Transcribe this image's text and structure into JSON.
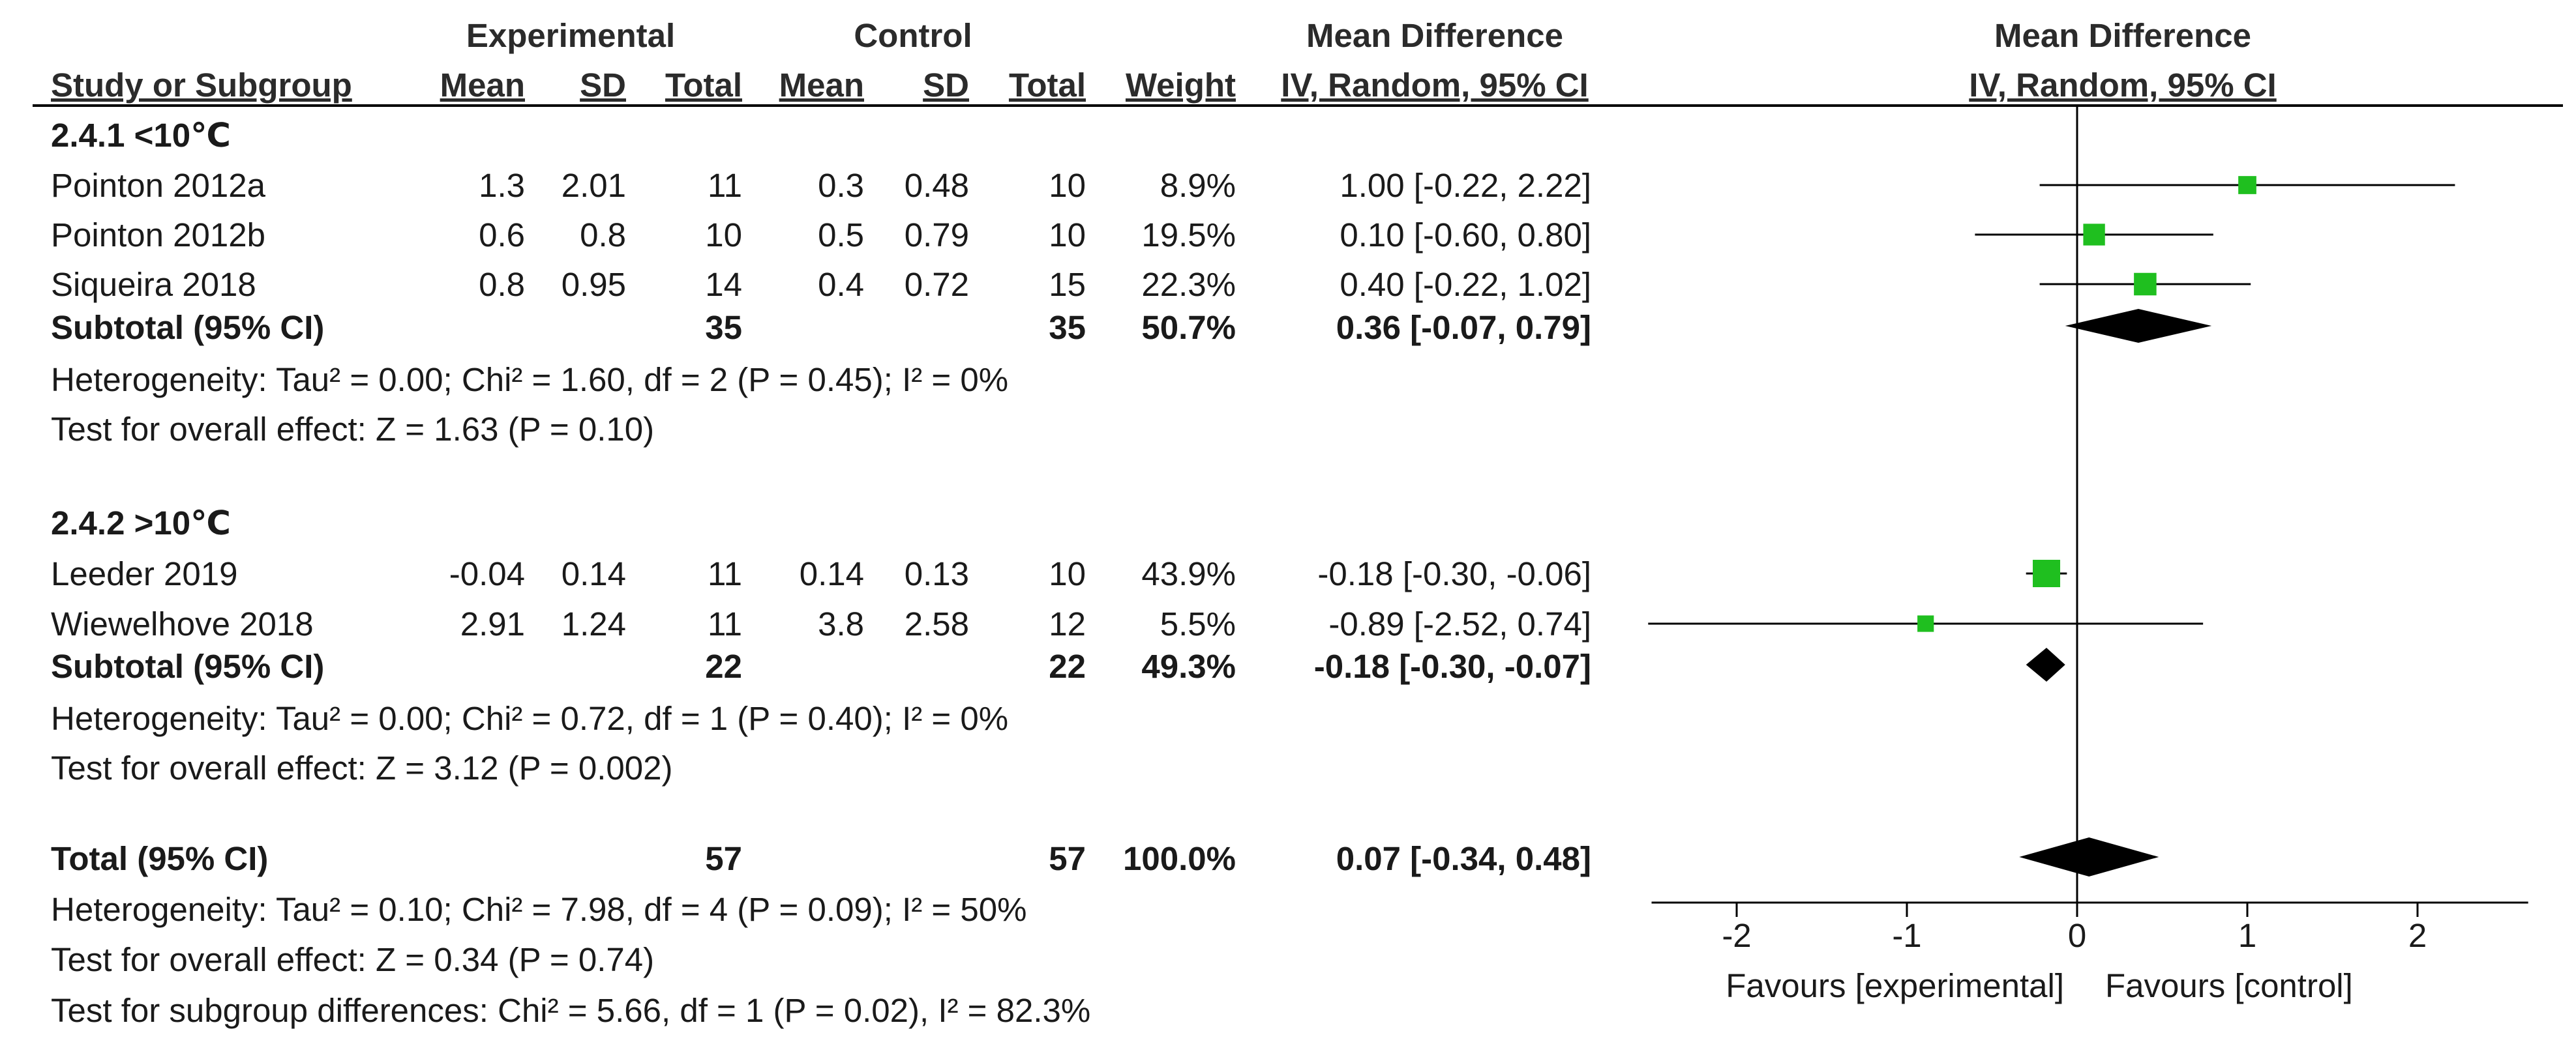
{
  "header": {
    "experimental": "Experimental",
    "control": "Control",
    "mean_difference": "Mean Difference",
    "plot_title": "Mean Difference",
    "plot_subtitle": "IV, Random, 95% CI",
    "columns": {
      "study": "Study or Subgroup",
      "exp_mean": "Mean",
      "exp_sd": "SD",
      "exp_total": "Total",
      "ctl_mean": "Mean",
      "ctl_sd": "SD",
      "ctl_total": "Total",
      "weight": "Weight",
      "ci": "IV, Random, 95% CI"
    }
  },
  "subgroups": [
    {
      "title": "2.4.1 <10℃",
      "studies": [
        {
          "name": "Pointon 2012a",
          "exp_mean": "1.3",
          "exp_sd": "2.01",
          "exp_total": "11",
          "ctl_mean": "0.3",
          "ctl_sd": "0.48",
          "ctl_total": "10",
          "weight": "8.9%",
          "ci_text": "1.00 [-0.22, 2.22]",
          "md": 1.0,
          "lower": -0.22,
          "upper": 2.22,
          "w": 8.9
        },
        {
          "name": "Pointon 2012b",
          "exp_mean": "0.6",
          "exp_sd": "0.8",
          "exp_total": "10",
          "ctl_mean": "0.5",
          "ctl_sd": "0.79",
          "ctl_total": "10",
          "weight": "19.5%",
          "ci_text": "0.10 [-0.60, 0.80]",
          "md": 0.1,
          "lower": -0.6,
          "upper": 0.8,
          "w": 19.5
        },
        {
          "name": "Siqueira 2018",
          "exp_mean": "0.8",
          "exp_sd": "0.95",
          "exp_total": "14",
          "ctl_mean": "0.4",
          "ctl_sd": "0.72",
          "ctl_total": "15",
          "weight": "22.3%",
          "ci_text": "0.40 [-0.22, 1.02]",
          "md": 0.4,
          "lower": -0.22,
          "upper": 1.02,
          "w": 22.3
        }
      ],
      "subtotal": {
        "label": "Subtotal (95% CI)",
        "exp_total": "35",
        "ctl_total": "35",
        "weight": "50.7%",
        "ci_text": "0.36 [-0.07, 0.79]",
        "md": 0.36,
        "lower": -0.07,
        "upper": 0.79
      },
      "heterogeneity": "Heterogeneity: Tau² = 0.00; Chi² = 1.60, df = 2 (P = 0.45); I² = 0%",
      "overall": "Test for overall effect: Z = 1.63 (P = 0.10)"
    },
    {
      "title": "2.4.2 >10℃",
      "studies": [
        {
          "name": "Leeder 2019",
          "exp_mean": "-0.04",
          "exp_sd": "0.14",
          "exp_total": "11",
          "ctl_mean": "0.14",
          "ctl_sd": "0.13",
          "ctl_total": "10",
          "weight": "43.9%",
          "ci_text": "-0.18 [-0.30, -0.06]",
          "md": -0.18,
          "lower": -0.3,
          "upper": -0.06,
          "w": 43.9
        },
        {
          "name": "Wiewelhove 2018",
          "exp_mean": "2.91",
          "exp_sd": "1.24",
          "exp_total": "11",
          "ctl_mean": "3.8",
          "ctl_sd": "2.58",
          "ctl_total": "12",
          "weight": "5.5%",
          "ci_text": "-0.89 [-2.52, 0.74]",
          "md": -0.89,
          "lower": -2.52,
          "upper": 0.74,
          "w": 5.5
        }
      ],
      "subtotal": {
        "label": "Subtotal (95% CI)",
        "exp_total": "22",
        "ctl_total": "22",
        "weight": "49.3%",
        "ci_text": "-0.18 [-0.30, -0.07]",
        "md": -0.18,
        "lower": -0.3,
        "upper": -0.07
      },
      "heterogeneity": "Heterogeneity: Tau² = 0.00; Chi² = 0.72, df = 1 (P = 0.40); I² = 0%",
      "overall": "Test for overall effect: Z = 3.12 (P = 0.002)"
    }
  ],
  "total": {
    "label": "Total (95% CI)",
    "exp_total": "57",
    "ctl_total": "57",
    "weight": "100.0%",
    "ci_text": "0.07 [-0.34, 0.48]",
    "md": 0.07,
    "lower": -0.34,
    "upper": 0.48,
    "heterogeneity": "Heterogeneity: Tau² = 0.10; Chi² = 7.98, df = 4 (P = 0.09); I² = 50%",
    "overall": "Test for overall effect: Z = 0.34 (P = 0.74)",
    "subgroup_diff": "Test for subgroup differences: Chi² = 5.66, df = 1 (P = 0.02), I² = 82.3%"
  },
  "axis": {
    "ticks": [
      -2,
      -1,
      0,
      1,
      2
    ],
    "tick_labels": [
      "-2",
      "-1",
      "0",
      "1",
      "2"
    ],
    "xlim": [
      -2.5,
      2.65
    ],
    "favours_left": "Favours [experimental]",
    "favours_right": "Favours [control]"
  },
  "colors": {
    "marker": "#1fbf1f",
    "diamond": "#000000",
    "line": "#000000",
    "text": "#1a1a1a"
  },
  "chart_data": {
    "type": "forest",
    "title": "Mean Difference",
    "subtitle": "IV, Random, 95% CI",
    "xlim": [
      -2.5,
      2.65
    ],
    "xticks": [
      -2,
      -1,
      0,
      1,
      2
    ],
    "xlabel_left": "Favours [experimental]",
    "xlabel_right": "Favours [control]",
    "studies": [
      {
        "name": "Pointon 2012a",
        "md": 1.0,
        "lower": -0.22,
        "upper": 2.22,
        "weight": 8.9
      },
      {
        "name": "Pointon 2012b",
        "md": 0.1,
        "lower": -0.6,
        "upper": 0.8,
        "weight": 19.5
      },
      {
        "name": "Siqueira 2018",
        "md": 0.4,
        "lower": -0.22,
        "upper": 1.02,
        "weight": 22.3
      },
      {
        "name": "Leeder 2019",
        "md": -0.18,
        "lower": -0.3,
        "upper": -0.06,
        "weight": 43.9
      },
      {
        "name": "Wiewelhove 2018",
        "md": -0.89,
        "lower": -2.52,
        "upper": 0.74,
        "weight": 5.5
      }
    ],
    "pooled": [
      {
        "name": "Subtotal 2.4.1 <10℃",
        "md": 0.36,
        "lower": -0.07,
        "upper": 0.79,
        "weight": 50.7
      },
      {
        "name": "Subtotal 2.4.2 >10℃",
        "md": -0.18,
        "lower": -0.3,
        "upper": -0.07,
        "weight": 49.3
      },
      {
        "name": "Total",
        "md": 0.07,
        "lower": -0.34,
        "upper": 0.48,
        "weight": 100.0
      }
    ]
  }
}
